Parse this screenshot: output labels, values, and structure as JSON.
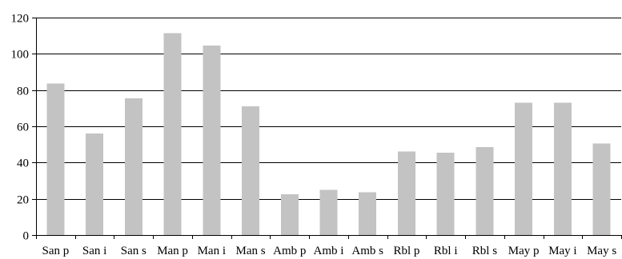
{
  "chart_data": {
    "type": "bar",
    "title": "",
    "xlabel": "",
    "ylabel": "",
    "categories": [
      "San p",
      "San i",
      "San s",
      "Man p",
      "Man i",
      "Man s",
      "Amb p",
      "Amb i",
      "Amb s",
      "Rbl p",
      "Rbl i",
      "Rbl s",
      "May p",
      "May i",
      "May s"
    ],
    "values": [
      83.5,
      56,
      75.5,
      111.5,
      104.5,
      71,
      22.5,
      25,
      23.5,
      46,
      45.5,
      48.5,
      73,
      73,
      50.5
    ],
    "ylim": [
      0,
      120
    ],
    "yticks": [
      0,
      20,
      40,
      60,
      80,
      100,
      120
    ],
    "grid": true,
    "legend": "none",
    "bar_color": "#c3c3c3"
  }
}
